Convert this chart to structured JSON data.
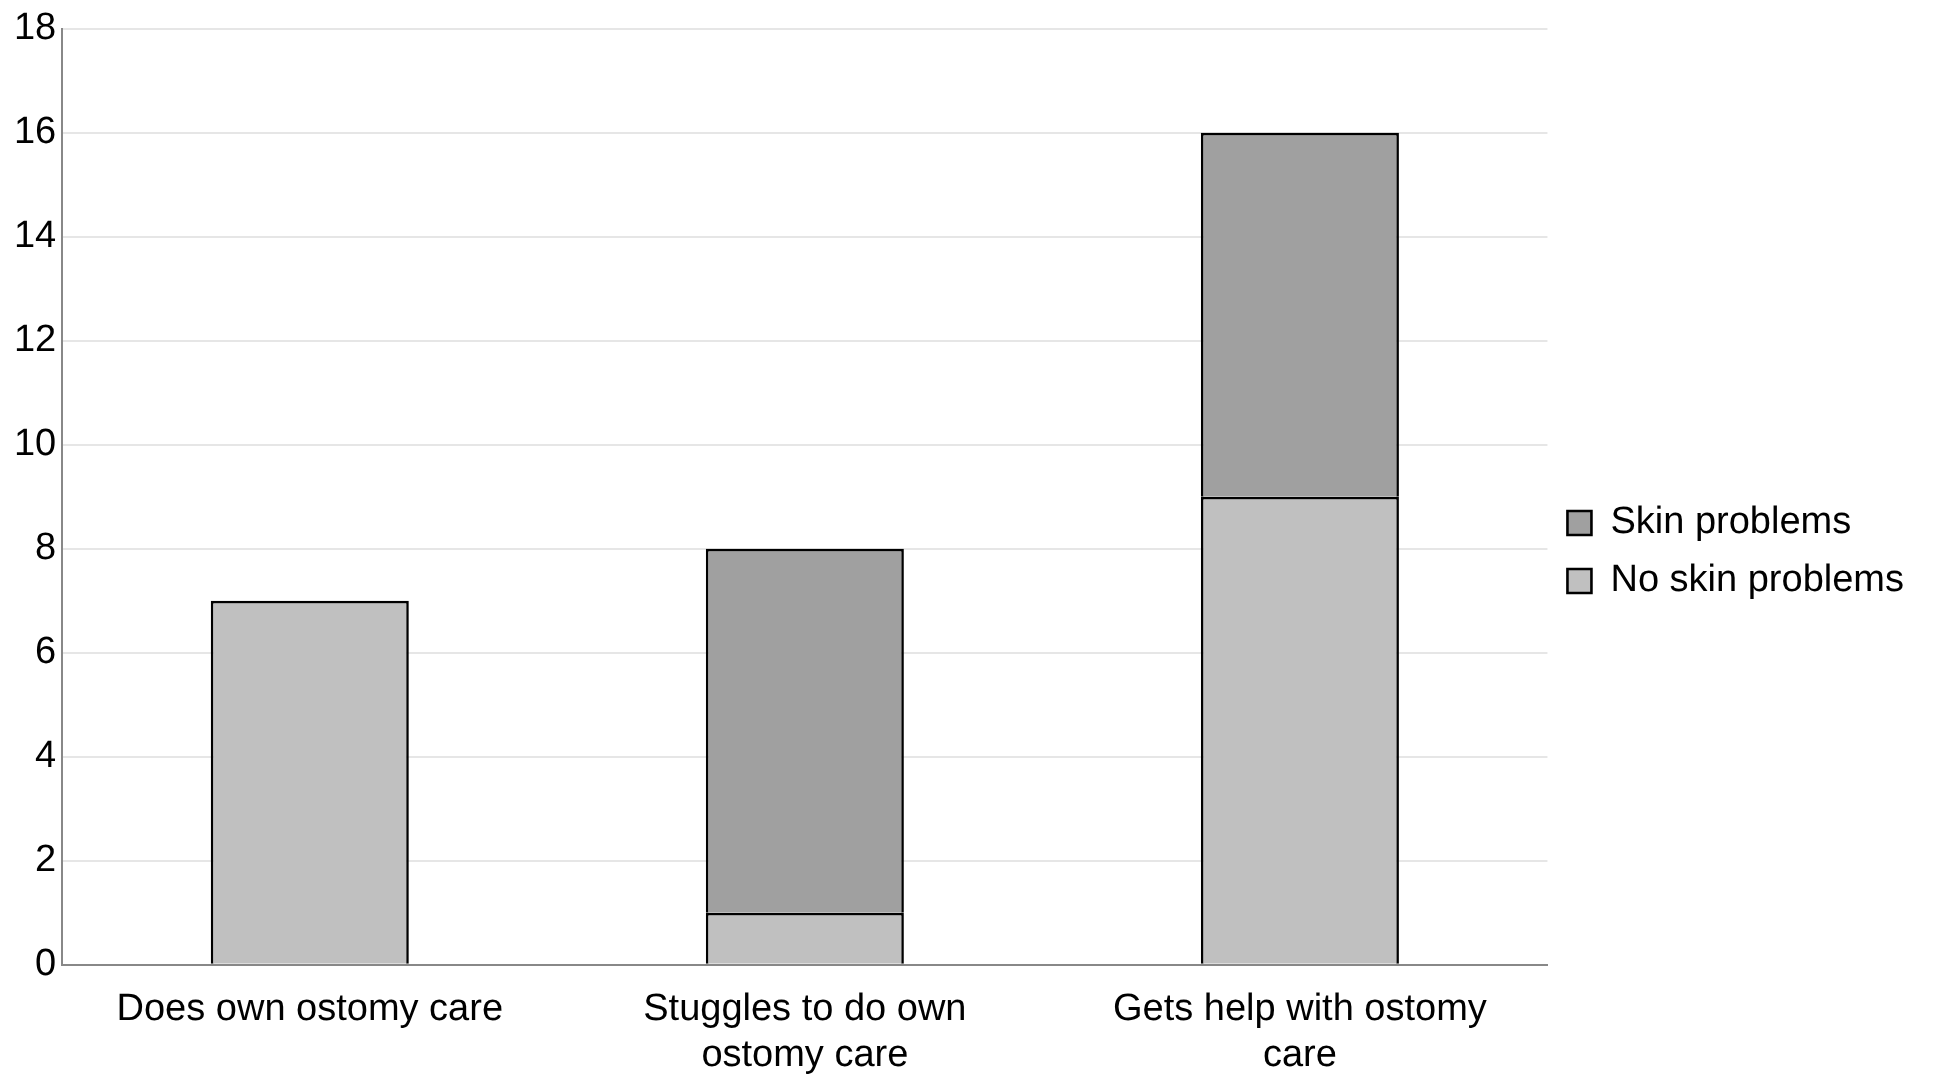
{
  "chart_data": {
    "type": "bar",
    "stacked": true,
    "categories": [
      "Does own ostomy care",
      "Stuggles to do own ostomy care",
      "Gets help with ostomy care"
    ],
    "series": [
      {
        "name": "No skin problems",
        "color": "#c0c0c0",
        "values": [
          7,
          1,
          9
        ]
      },
      {
        "name": "Skin problems",
        "color": "#a0a0a0",
        "values": [
          0,
          7,
          7
        ]
      }
    ],
    "ylim": [
      0,
      18
    ],
    "yticks": [
      0,
      2,
      4,
      6,
      8,
      10,
      12,
      14,
      16,
      18
    ],
    "grid": "y",
    "legend": "right"
  }
}
